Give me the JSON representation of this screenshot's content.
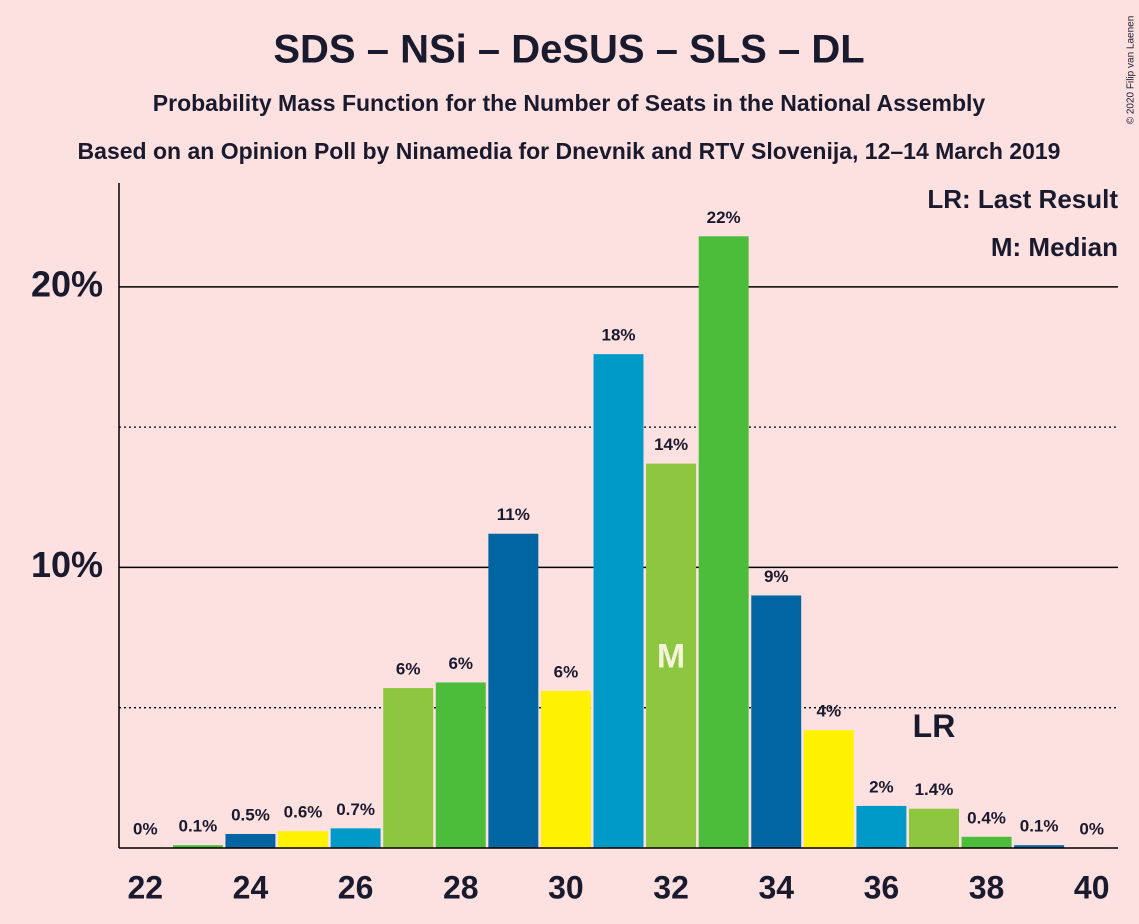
{
  "chart_data": {
    "type": "bar",
    "title": "SDS – NSi – DeSUS – SLS – DL",
    "subtitle": "Probability Mass Function for the Number of Seats in the National Assembly",
    "subtitle2": "Based on an Opinion Poll by Ninamedia for Dnevnik and RTV Slovenija, 12–14 March 2019",
    "copyright": "© 2020 Filip van Laenen",
    "legend": [
      "LR: Last Result",
      "M: Median"
    ],
    "x": [
      22,
      23,
      24,
      25,
      26,
      27,
      28,
      29,
      30,
      31,
      32,
      33,
      34,
      35,
      36,
      37,
      38,
      39,
      40
    ],
    "values": [
      0,
      0.1,
      0.5,
      0.6,
      0.7,
      5.7,
      5.9,
      11.2,
      5.6,
      17.6,
      13.7,
      21.8,
      9.0,
      4.2,
      1.5,
      1.4,
      0.4,
      0.1,
      0
    ],
    "value_labels": [
      "0%",
      "0.1%",
      "0.5%",
      "0.6%",
      "0.7%",
      "6%",
      "6%",
      "11%",
      "6%",
      "18%",
      "14%",
      "22%",
      "9%",
      "4%",
      "2%",
      "1.4%",
      "0.4%",
      "0.1%",
      "0%"
    ],
    "colors": [
      "#8dc63f",
      "#4bbd3a",
      "#0065a1",
      "#fff200",
      "#009ac8",
      "#8dc63f",
      "#4bbd3a",
      "#0065a1",
      "#fff200",
      "#009ac8",
      "#8dc63f",
      "#4bbd3a",
      "#0065a1",
      "#fff200",
      "#009ac8",
      "#8dc63f",
      "#4bbd3a",
      "#0065a1",
      "#fff200"
    ],
    "xlim": [
      21.5,
      40.5
    ],
    "xticks": [
      22,
      24,
      26,
      28,
      30,
      32,
      34,
      36,
      38,
      40
    ],
    "ylim": [
      0,
      23.7
    ],
    "yticks": [
      {
        "value": 10,
        "label": "10%"
      },
      {
        "value": 20,
        "label": "20%"
      }
    ],
    "minor_grid": [
      5,
      15
    ],
    "median": {
      "x": 32,
      "label": "M"
    },
    "last_result": {
      "x": 37,
      "label": "LR"
    }
  }
}
